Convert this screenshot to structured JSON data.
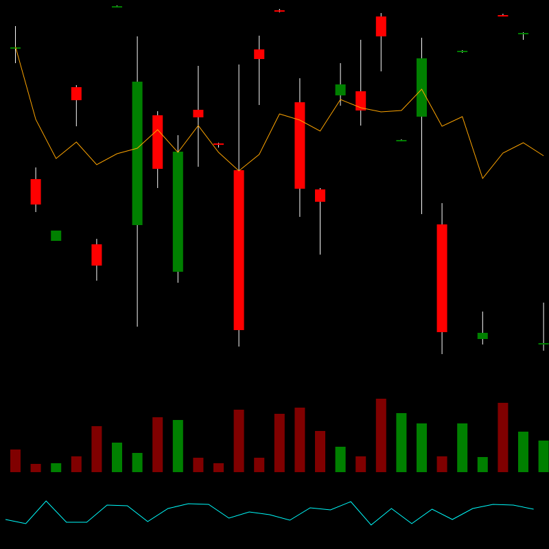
{
  "chart_data": {
    "type": "candlestick",
    "colors": {
      "background": "#000000",
      "up": "#008000",
      "down": "#ff0000",
      "wick": "#ffffff",
      "ma_line": "#ffa500",
      "volume_up": "#008000",
      "volume_down": "#800000",
      "indicator_line": "#00ffff"
    },
    "price_panel": {
      "ylim": [
        0,
        800
      ],
      "candles": [
        {
          "open": 730,
          "close": 731,
          "high": 762,
          "low": 708
        },
        {
          "open": 539,
          "close": 502,
          "high": 556,
          "low": 491
        },
        {
          "open": 449,
          "close": 464,
          "high": 464,
          "low": 449
        },
        {
          "open": 673,
          "close": 654,
          "high": 676,
          "low": 616
        },
        {
          "open": 444,
          "close": 413,
          "high": 452,
          "low": 391
        },
        {
          "open": 790,
          "close": 791,
          "high": 792,
          "low": 789
        },
        {
          "open": 472,
          "close": 681,
          "high": 747,
          "low": 324
        },
        {
          "open": 632,
          "close": 554,
          "high": 638,
          "low": 526
        },
        {
          "open": 404,
          "close": 579,
          "high": 603,
          "low": 388
        },
        {
          "open": 640,
          "close": 629,
          "high": 704,
          "low": 557
        },
        {
          "open": 591,
          "close": 589,
          "high": 592,
          "low": 585
        },
        {
          "open": 552,
          "close": 319,
          "high": 706,
          "low": 295
        },
        {
          "open": 728,
          "close": 714,
          "high": 748,
          "low": 647
        },
        {
          "open": 785,
          "close": 784,
          "high": 787,
          "low": 782
        },
        {
          "open": 651,
          "close": 525,
          "high": 686,
          "low": 484
        },
        {
          "open": 524,
          "close": 506,
          "high": 526,
          "low": 429
        },
        {
          "open": 661,
          "close": 677,
          "high": 708,
          "low": 646
        },
        {
          "open": 667,
          "close": 639,
          "high": 742,
          "low": 617
        },
        {
          "open": 776,
          "close": 747,
          "high": 781,
          "low": 696
        },
        {
          "open": 595,
          "close": 596,
          "high": 597,
          "low": 594
        },
        {
          "open": 630,
          "close": 715,
          "high": 745,
          "low": 488
        },
        {
          "open": 473,
          "close": 316,
          "high": 504,
          "low": 284
        },
        {
          "open": 725,
          "close": 726,
          "high": 727,
          "low": 723
        },
        {
          "open": 306,
          "close": 315,
          "high": 346,
          "low": 298
        },
        {
          "open": 778,
          "close": 777,
          "high": 780,
          "low": 776
        },
        {
          "open": 750,
          "close": 752,
          "high": 753,
          "low": 742
        },
        {
          "open": 298,
          "close": 300,
          "high": 359,
          "low": 289
        }
      ],
      "ma": [
        732,
        626,
        569,
        593,
        560,
        576,
        584,
        611,
        578,
        617,
        578,
        551,
        575,
        634,
        625,
        609,
        655,
        643,
        637,
        639,
        670,
        616,
        630,
        540,
        577,
        592,
        573
      ]
    },
    "volume_panel": {
      "values": [
        33,
        12,
        13,
        23,
        67,
        43,
        28,
        80,
        76,
        21,
        13,
        91,
        21,
        85,
        94,
        60,
        37,
        23,
        107,
        86,
        71,
        23,
        71,
        22,
        101,
        59,
        46
      ],
      "directions": [
        "down",
        "down",
        "up",
        "down",
        "down",
        "up",
        "up",
        "down",
        "up",
        "down",
        "down",
        "down",
        "down",
        "down",
        "down",
        "down",
        "up",
        "down",
        "down",
        "up",
        "up",
        "down",
        "up",
        "up",
        "down",
        "up",
        "up"
      ]
    },
    "indicator_panel": {
      "values": [
        43,
        37,
        70,
        39,
        39,
        64,
        63,
        40,
        59,
        66,
        65,
        45,
        54,
        50,
        42,
        60,
        57,
        69,
        35,
        59,
        37,
        58,
        43,
        59,
        65,
        64,
        58
      ]
    }
  }
}
